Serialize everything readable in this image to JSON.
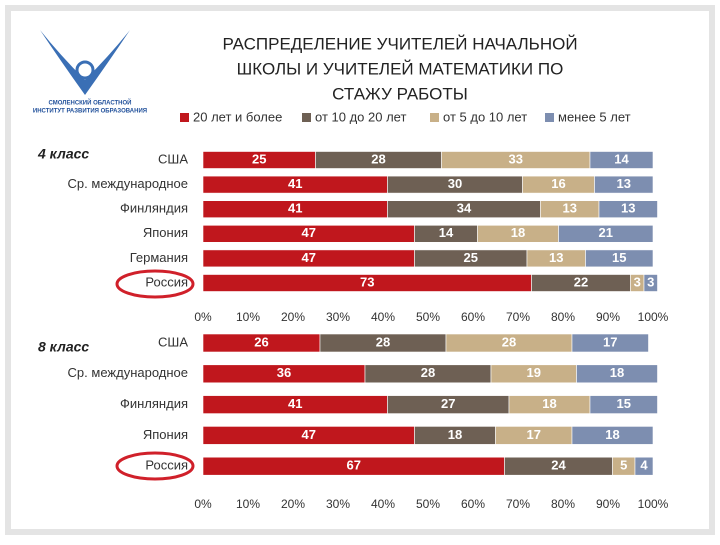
{
  "title": [
    "РАСПРЕДЕЛЕНИЕ УЧИТЕЛЕЙ НАЧАЛЬНОЙ",
    "ШКОЛЫ И УЧИТЕЛЕЙ МАТЕМАТИКИ ПО",
    "СТАЖУ РАБОТЫ"
  ],
  "logo_text": [
    "СМОЛЕНСКИЙ ОБЛАСТНОЙ",
    "ИНСТИТУТ РАЗВИТИЯ ОБРАЗОВАНИЯ"
  ],
  "chart_data": [
    {
      "type": "stacked-bar-horizontal",
      "title": "4 класс",
      "categories": [
        "США",
        "Ср. международное",
        "Финляндия",
        "Япония",
        "Германия",
        "Россия"
      ],
      "series": [
        {
          "name": "20 лет и более",
          "color": "#c0171d",
          "values": [
            25,
            41,
            41,
            47,
            47,
            73
          ]
        },
        {
          "name": "от 10 до 20 лет",
          "color": "#6e6054",
          "values": [
            28,
            30,
            34,
            14,
            25,
            22
          ]
        },
        {
          "name": "от 5 до 10 лет",
          "color": "#c8b088",
          "values": [
            33,
            16,
            13,
            18,
            13,
            3
          ]
        },
        {
          "name": "менее 5 лет",
          "color": "#7d8eb0",
          "values": [
            14,
            13,
            13,
            21,
            15,
            3
          ]
        }
      ],
      "xlim": [
        0,
        100
      ],
      "xticks": [
        {
          "value": 0,
          "label": "0%"
        },
        {
          "value": 10,
          "label": "10%"
        },
        {
          "value": 20,
          "label": "20%"
        },
        {
          "value": 30,
          "label": "30%"
        },
        {
          "value": 40,
          "label": "40%"
        },
        {
          "value": 50,
          "label": "50%"
        },
        {
          "value": 60,
          "label": "60%"
        },
        {
          "value": 70,
          "label": "70%"
        },
        {
          "value": 80,
          "label": "80%"
        },
        {
          "value": 90,
          "label": "90%"
        },
        {
          "value": 100,
          "label": "100%"
        }
      ]
    },
    {
      "type": "stacked-bar-horizontal",
      "title": "8 класс",
      "categories": [
        "США",
        "Ср. международное",
        "Финляндия",
        "Япония",
        "Россия"
      ],
      "series": [
        {
          "color": "#c0171d",
          "values": [
            26,
            36,
            41,
            47,
            67
          ]
        },
        {
          "color": "#6e6054",
          "values": [
            28,
            28,
            27,
            18,
            24
          ]
        },
        {
          "color": "#c8b088",
          "values": [
            28,
            19,
            18,
            17,
            5
          ]
        },
        {
          "color": "#7d8eb0",
          "values": [
            17,
            18,
            15,
            18,
            4
          ]
        }
      ],
      "xlim": [
        0,
        100
      ],
      "xticks": [
        {
          "value": 0,
          "label": "0%"
        },
        {
          "value": 10,
          "label": "10%"
        },
        {
          "value": 20,
          "label": "20%"
        },
        {
          "value": 30,
          "label": "30%"
        },
        {
          "value": 40,
          "label": "40%"
        },
        {
          "value": 50,
          "label": "50%"
        },
        {
          "value": 60,
          "label": "60%"
        },
        {
          "value": 70,
          "label": "70%"
        },
        {
          "value": 80,
          "label": "80%"
        },
        {
          "value": 90,
          "label": "90%"
        },
        {
          "value": 100,
          "label": "100%"
        }
      ]
    }
  ]
}
